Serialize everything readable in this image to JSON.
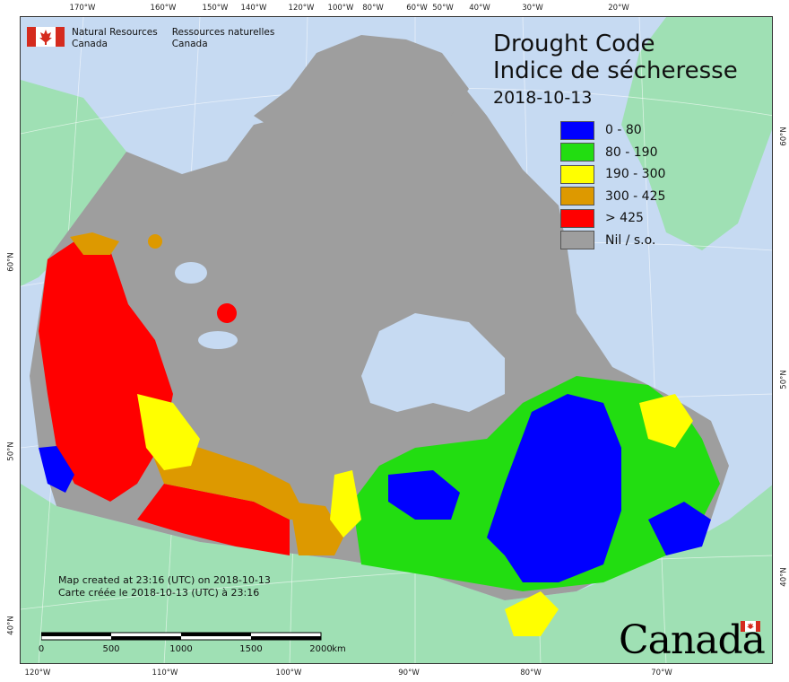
{
  "header": {
    "title_en": "Drought Code",
    "title_fr": "Indice de sécheresse",
    "date": "2018-10-13"
  },
  "agency": {
    "name_en_line1": "Natural Resources",
    "name_en_line2": "Canada",
    "name_fr_line1": "Ressources naturelles",
    "name_fr_line2": "Canada"
  },
  "legend": [
    {
      "label": "0 - 80",
      "color": "#0000ff"
    },
    {
      "label": "80 - 190",
      "color": "#22dd11"
    },
    {
      "label": "190 - 300",
      "color": "#ffff00"
    },
    {
      "label": "300 - 425",
      "color": "#dd9900"
    },
    {
      "label": "> 425",
      "color": "#ff0000"
    },
    {
      "label": "Nil / s.o.",
      "color": "#9e9e9e"
    }
  ],
  "credits": {
    "line_en": "Map created at 23:16 (UTC) on 2018-10-13",
    "line_fr": "Carte créée le 2018-10-13 (UTC) à 23:16"
  },
  "scale": {
    "labels": [
      "0",
      "500",
      "1000",
      "1500",
      "2000"
    ],
    "unit": "km"
  },
  "wordmark": "Canada",
  "graticule": {
    "top": [
      "170°W",
      "160°W",
      "150°W",
      "140°W",
      "120°W",
      "100°W",
      "80°W",
      "60°W",
      "50°W",
      "40°W",
      "30°W",
      "20°W"
    ],
    "bottom": [
      "120°W",
      "110°W",
      "100°W",
      "90°W",
      "80°W",
      "70°W"
    ],
    "left": [
      "60°N",
      "50°N",
      "40°N"
    ],
    "right": [
      "60°N",
      "50°N",
      "40°N"
    ]
  },
  "colors": {
    "ocean": "#c6daf2",
    "foreign_land": "#9fe0b4",
    "nil": "#9e9e9e"
  }
}
